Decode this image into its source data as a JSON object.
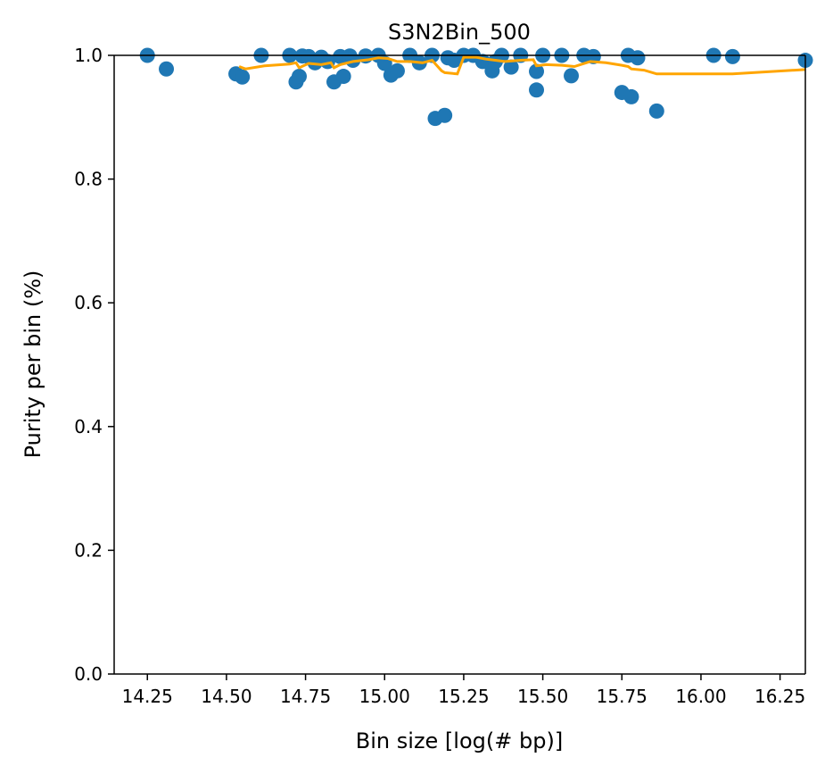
{
  "chart_data": {
    "type": "scatter",
    "title": "S3N2Bin_500",
    "xlabel": "Bin size [log(# bp)]",
    "ylabel": "Purity per bin (%)",
    "xlim": [
      14.145,
      16.33
    ],
    "ylim": [
      0,
      1.0
    ],
    "xticks": [
      "14.25",
      "14.50",
      "14.75",
      "15.00",
      "15.25",
      "15.50",
      "15.75",
      "16.00",
      "16.25"
    ],
    "yticks": [
      "0.0",
      "0.2",
      "0.4",
      "0.6",
      "0.8",
      "1.0"
    ],
    "grid": false,
    "colors": {
      "points": "#1f77b4",
      "line": "#ffa500"
    },
    "series": [
      {
        "kind": "scatter",
        "points": [
          [
            14.25,
            1.0
          ],
          [
            14.31,
            0.978
          ],
          [
            14.53,
            0.97
          ],
          [
            14.55,
            0.965
          ],
          [
            14.61,
            1.0
          ],
          [
            14.7,
            1.0
          ],
          [
            14.72,
            0.957
          ],
          [
            14.73,
            0.966
          ],
          [
            14.74,
            0.999
          ],
          [
            14.76,
            0.998
          ],
          [
            14.78,
            0.988
          ],
          [
            14.8,
            0.997
          ],
          [
            14.82,
            0.99
          ],
          [
            14.84,
            0.957
          ],
          [
            14.86,
            0.998
          ],
          [
            14.87,
            0.966
          ],
          [
            14.89,
            0.999
          ],
          [
            14.9,
            0.992
          ],
          [
            14.94,
            0.999
          ],
          [
            14.98,
            1.0
          ],
          [
            15.0,
            0.987
          ],
          [
            15.02,
            0.968
          ],
          [
            15.04,
            0.975
          ],
          [
            15.08,
            1.0
          ],
          [
            15.11,
            0.988
          ],
          [
            15.15,
            1.0
          ],
          [
            15.16,
            0.898
          ],
          [
            15.19,
            0.903
          ],
          [
            15.2,
            0.996
          ],
          [
            15.22,
            0.992
          ],
          [
            15.25,
            1.0
          ],
          [
            15.28,
            1.0
          ],
          [
            15.31,
            0.99
          ],
          [
            15.34,
            0.975
          ],
          [
            15.35,
            0.99
          ],
          [
            15.37,
            1.0
          ],
          [
            15.4,
            0.981
          ],
          [
            15.43,
            1.0
          ],
          [
            15.48,
            0.974
          ],
          [
            15.48,
            0.944
          ],
          [
            15.5,
            1.0
          ],
          [
            15.56,
            1.0
          ],
          [
            15.59,
            0.967
          ],
          [
            15.63,
            1.0
          ],
          [
            15.66,
            0.998
          ],
          [
            15.75,
            0.94
          ],
          [
            15.77,
            1.0
          ],
          [
            15.78,
            0.933
          ],
          [
            15.8,
            0.996
          ],
          [
            15.86,
            0.91
          ],
          [
            16.04,
            1.0
          ],
          [
            16.1,
            0.998
          ],
          [
            16.33,
            0.992
          ]
        ]
      },
      {
        "kind": "line",
        "points": [
          [
            14.54,
            0.982
          ],
          [
            14.56,
            0.978
          ],
          [
            14.62,
            0.983
          ],
          [
            14.7,
            0.986
          ],
          [
            14.72,
            0.988
          ],
          [
            14.73,
            0.98
          ],
          [
            14.76,
            0.987
          ],
          [
            14.8,
            0.985
          ],
          [
            14.83,
            0.988
          ],
          [
            14.84,
            0.98
          ],
          [
            14.86,
            0.985
          ],
          [
            14.9,
            0.99
          ],
          [
            14.95,
            0.993
          ],
          [
            14.98,
            0.996
          ],
          [
            15.01,
            0.995
          ],
          [
            15.04,
            0.99
          ],
          [
            15.08,
            0.99
          ],
          [
            15.12,
            0.988
          ],
          [
            15.15,
            0.992
          ],
          [
            15.18,
            0.975
          ],
          [
            15.19,
            0.972
          ],
          [
            15.23,
            0.97
          ],
          [
            15.25,
            0.997
          ],
          [
            15.29,
            0.997
          ],
          [
            15.32,
            0.994
          ],
          [
            15.35,
            0.992
          ],
          [
            15.38,
            0.99
          ],
          [
            15.43,
            0.992
          ],
          [
            15.47,
            0.993
          ],
          [
            15.48,
            0.983
          ],
          [
            15.51,
            0.985
          ],
          [
            15.56,
            0.984
          ],
          [
            15.6,
            0.982
          ],
          [
            15.65,
            0.99
          ],
          [
            15.7,
            0.988
          ],
          [
            15.75,
            0.984
          ],
          [
            15.77,
            0.982
          ],
          [
            15.78,
            0.978
          ],
          [
            15.82,
            0.976
          ],
          [
            15.86,
            0.97
          ],
          [
            16.0,
            0.97
          ],
          [
            16.1,
            0.97
          ],
          [
            16.33,
            0.977
          ]
        ]
      }
    ]
  }
}
